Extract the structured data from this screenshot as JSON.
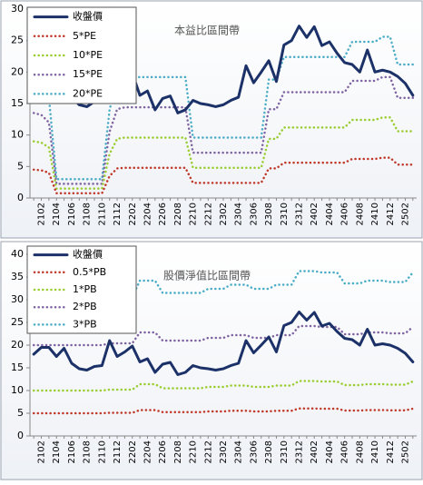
{
  "chart_data": [
    {
      "type": "line",
      "title": "本益比區間帶",
      "categories": [
        null,
        "2102",
        null,
        "2104",
        null,
        "2106",
        null,
        "2108",
        null,
        "2110",
        null,
        "2112",
        null,
        "2202",
        null,
        "2204",
        null,
        "2206",
        null,
        "2208",
        null,
        "2210",
        null,
        "2212",
        null,
        "2302",
        null,
        "2304",
        null,
        "2306",
        null,
        "2308",
        null,
        "2310",
        null,
        "2312",
        null,
        "2402",
        null,
        "2404",
        null,
        "2406",
        null,
        "2408",
        null,
        "2410",
        null,
        "2412",
        null,
        "2502",
        null
      ],
      "ylim": [
        0,
        30
      ],
      "yticks": [
        0,
        5,
        10,
        15,
        20,
        25,
        30
      ],
      "legend": "top-left",
      "series": [
        {
          "name": "收盤價",
          "color": "#1b3168",
          "values": [
            18,
            19.5,
            19.5,
            17.5,
            19.3,
            16,
            14.8,
            14.5,
            15.3,
            15.5,
            21,
            17.5,
            18.5,
            19.8,
            16.3,
            17,
            14,
            15.8,
            16.2,
            13.5,
            14,
            15.5,
            15,
            14.8,
            14.5,
            14.8,
            15.5,
            16,
            21,
            18.3,
            20,
            21.8,
            18.5,
            24.3,
            25,
            27.3,
            25.5,
            27.2,
            24.2,
            24.8,
            23,
            21.5,
            21.2,
            20,
            23.5,
            20,
            20.3,
            20,
            19.3,
            18.2,
            16.3
          ]
        },
        {
          "name": "5*PE",
          "color": "#c0392b",
          "values": [
            4.5,
            4.4,
            4,
            0.75,
            0.75,
            0.75,
            0.75,
            0.75,
            0.75,
            0.75,
            3.5,
            4.7,
            4.8,
            4.8,
            4.8,
            4.8,
            4.8,
            4.8,
            4.8,
            4.8,
            4.8,
            2.4,
            2.4,
            2.4,
            2.4,
            2.4,
            2.4,
            2.4,
            2.4,
            2.4,
            2.4,
            4.7,
            4.7,
            5.6,
            5.6,
            5.6,
            5.6,
            5.6,
            5.6,
            5.6,
            5.6,
            5.6,
            6.2,
            6.2,
            6.2,
            6.2,
            6.4,
            6.4,
            5.3,
            5.3,
            5.3
          ]
        },
        {
          "name": "10*PE",
          "color": "#9acd32",
          "values": [
            9,
            8.8,
            8,
            1.5,
            1.5,
            1.5,
            1.5,
            1.5,
            1.5,
            1.5,
            7,
            9.4,
            9.6,
            9.6,
            9.6,
            9.6,
            9.6,
            9.6,
            9.6,
            9.6,
            9.6,
            4.8,
            4.8,
            4.8,
            4.8,
            4.8,
            4.8,
            4.8,
            4.8,
            4.8,
            4.8,
            9.4,
            9.4,
            11.2,
            11.2,
            11.2,
            11.2,
            11.2,
            11.2,
            11.2,
            11.2,
            11.2,
            12.4,
            12.4,
            12.4,
            12.4,
            12.8,
            12.8,
            10.6,
            10.6,
            10.6
          ]
        },
        {
          "name": "15*PE",
          "color": "#8064a2",
          "values": [
            13.5,
            13.2,
            12,
            2.25,
            2.25,
            2.25,
            2.25,
            2.25,
            2.25,
            2.25,
            10.5,
            14.1,
            14.4,
            14.4,
            14.4,
            14.4,
            14.4,
            14.4,
            14.4,
            14.4,
            14.4,
            7.2,
            7.2,
            7.2,
            7.2,
            7.2,
            7.2,
            7.2,
            7.2,
            7.2,
            7.2,
            14.1,
            14.1,
            16.8,
            16.8,
            16.8,
            16.8,
            16.8,
            16.8,
            16.8,
            16.8,
            16.8,
            18.6,
            18.6,
            18.6,
            18.6,
            19.2,
            19.2,
            15.9,
            15.9,
            15.9
          ]
        },
        {
          "name": "20*PE",
          "color": "#4bacc6",
          "values": [
            18,
            17.6,
            16,
            3,
            3,
            3,
            3,
            3,
            3,
            3,
            14,
            18.8,
            19.2,
            19.2,
            19.2,
            19.2,
            19.2,
            19.2,
            19.2,
            19.2,
            19.2,
            9.6,
            9.6,
            9.6,
            9.6,
            9.6,
            9.6,
            9.6,
            9.6,
            9.6,
            9.6,
            18.8,
            18.8,
            22.4,
            22.4,
            22.4,
            22.4,
            22.4,
            22.4,
            22.4,
            22.4,
            22.4,
            24.8,
            24.8,
            24.8,
            24.8,
            25.6,
            25.6,
            21.2,
            21.2,
            21.2
          ]
        }
      ]
    },
    {
      "type": "line",
      "title": "股價淨值比區間帶",
      "categories": [
        null,
        "2102",
        null,
        "2104",
        null,
        "2106",
        null,
        "2108",
        null,
        "2110",
        null,
        "2112",
        null,
        "2202",
        null,
        "2204",
        null,
        "2206",
        null,
        "2208",
        null,
        "2210",
        null,
        "2212",
        null,
        "2302",
        null,
        "2304",
        null,
        "2306",
        null,
        "2308",
        null,
        "2310",
        null,
        "2312",
        null,
        "2402",
        null,
        "2404",
        null,
        "2406",
        null,
        "2408",
        null,
        "2410",
        null,
        "2412",
        null,
        "2502",
        null
      ],
      "ylim": [
        0,
        40
      ],
      "yticks": [
        0,
        5,
        10,
        15,
        20,
        25,
        30,
        35,
        40
      ],
      "legend": "top-left",
      "series": [
        {
          "name": "收盤價",
          "color": "#1b3168",
          "values": [
            18,
            19.5,
            19.5,
            17.5,
            19.3,
            16,
            14.8,
            14.5,
            15.3,
            15.5,
            21,
            17.5,
            18.5,
            19.8,
            16.3,
            17,
            14,
            15.8,
            16.2,
            13.5,
            14,
            15.5,
            15,
            14.8,
            14.5,
            14.8,
            15.5,
            16,
            21,
            18.3,
            20,
            21.8,
            18.5,
            24.3,
            25,
            27.3,
            25.5,
            27.2,
            24.2,
            24.8,
            23,
            21.5,
            21.2,
            20,
            23.5,
            20,
            20.3,
            20,
            19.3,
            18.2,
            16.3
          ]
        },
        {
          "name": "0.5*PB",
          "color": "#c0392b",
          "values": [
            5,
            5,
            5,
            5,
            5,
            5,
            5,
            5,
            5,
            5,
            5.1,
            5.1,
            5.1,
            5.1,
            5.7,
            5.7,
            5.7,
            5.25,
            5.25,
            5.25,
            5.25,
            5.25,
            5.25,
            5.4,
            5.4,
            5.4,
            5.55,
            5.55,
            5.55,
            5.4,
            5.4,
            5.4,
            5.55,
            5.55,
            5.55,
            6.05,
            6.05,
            6.05,
            6,
            6,
            6,
            5.6,
            5.6,
            5.6,
            5.7,
            5.7,
            5.7,
            5.65,
            5.65,
            5.65,
            6
          ]
        },
        {
          "name": "1*PB",
          "color": "#9acd32",
          "values": [
            10,
            10,
            10,
            10,
            10,
            10,
            10,
            10,
            10,
            10,
            10.2,
            10.2,
            10.2,
            10.2,
            11.4,
            11.4,
            11.4,
            10.5,
            10.5,
            10.5,
            10.5,
            10.5,
            10.5,
            10.8,
            10.8,
            10.8,
            11.1,
            11.1,
            11.1,
            10.8,
            10.8,
            10.8,
            11.1,
            11.1,
            11.1,
            12.1,
            12.1,
            12.1,
            12,
            12,
            12,
            11.2,
            11.2,
            11.2,
            11.4,
            11.4,
            11.4,
            11.3,
            11.3,
            11.3,
            12
          ]
        },
        {
          "name": "2*PB",
          "color": "#8064a2",
          "values": [
            20,
            20,
            20,
            20,
            20,
            20,
            20,
            20,
            20,
            20,
            20.4,
            20.4,
            20.4,
            20.4,
            22.8,
            22.8,
            22.8,
            21,
            21,
            21,
            21,
            21,
            21,
            21.6,
            21.6,
            21.6,
            22.2,
            22.2,
            22.2,
            21.6,
            21.6,
            21.6,
            22.2,
            22.2,
            22.2,
            24.2,
            24.2,
            24.2,
            24,
            24,
            24,
            22.4,
            22.4,
            22.4,
            22.8,
            22.8,
            22.8,
            22.6,
            22.6,
            22.6,
            24
          ]
        },
        {
          "name": "3*PB",
          "color": "#4bacc6",
          "values": [
            30,
            30,
            30,
            30,
            30,
            30,
            30,
            30,
            30,
            30,
            30.6,
            30.6,
            30.6,
            30.6,
            34.2,
            34.2,
            34.2,
            31.5,
            31.5,
            31.5,
            31.5,
            31.5,
            31.5,
            32.4,
            32.4,
            32.4,
            33.3,
            33.3,
            33.3,
            32.4,
            32.4,
            32.4,
            33.3,
            33.3,
            33.3,
            36.3,
            36.3,
            36.3,
            36,
            36,
            36,
            33.6,
            33.6,
            33.6,
            34.2,
            34.2,
            34.2,
            33.9,
            33.9,
            33.9,
            36
          ]
        }
      ]
    }
  ]
}
